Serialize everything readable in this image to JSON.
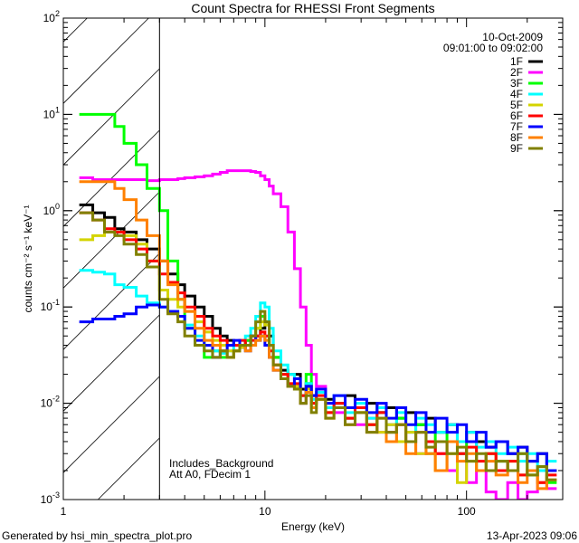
{
  "chart_data": {
    "type": "line",
    "title": "Count Spectra for RHESSI Front Segments",
    "xlabel": "Energy (keV)",
    "ylabel": "counts cm⁻² s⁻¹ keV⁻¹",
    "xscale": "log",
    "yscale": "log",
    "xlim": [
      1,
      300
    ],
    "ylim": [
      0.001,
      100
    ],
    "xtick_labels": [
      {
        "value": 1,
        "label": "1"
      },
      {
        "value": 10,
        "label": "10"
      },
      {
        "value": 100,
        "label": "100"
      }
    ],
    "ytick_labels": [
      {
        "value": 100,
        "base": "10",
        "exp": "2"
      },
      {
        "value": 10,
        "base": "10",
        "exp": "1"
      },
      {
        "value": 1,
        "base": "10",
        "exp": "0"
      },
      {
        "value": 0.1,
        "base": "10",
        "exp": "-1"
      },
      {
        "value": 0.01,
        "base": "10",
        "exp": "-2"
      },
      {
        "value": 0.001,
        "base": "10",
        "exp": "-3"
      }
    ],
    "date": "10-Oct-2009",
    "time_range": "09:01:00 to 09:02:00",
    "legend_position": "top-right",
    "shaded_region_keV": [
      1,
      3
    ],
    "annotations": [
      "Includes_Background",
      "Att A0, FDecim 1"
    ],
    "energies": [
      1.2,
      1.4,
      1.6,
      1.8,
      2.0,
      2.3,
      2.6,
      3.0,
      3.3,
      3.7,
      4.0,
      4.5,
      5,
      5.5,
      6,
      6.5,
      7,
      7.5,
      8,
      8.5,
      9,
      9.5,
      10,
      10.5,
      11,
      12,
      13,
      14,
      15,
      16,
      17,
      18,
      20,
      22,
      25,
      28,
      32,
      36,
      40,
      45,
      50,
      56,
      63,
      70,
      80,
      90,
      100,
      112,
      125,
      140,
      160,
      180,
      200,
      225,
      250
    ],
    "series": [
      {
        "name": "1F",
        "color": "#000000",
        "values": [
          1.15,
          0.95,
          0.85,
          0.65,
          0.6,
          0.5,
          0.4,
          0.3,
          0.22,
          0.17,
          0.13,
          0.1,
          0.08,
          0.06,
          0.05,
          0.045,
          0.04,
          0.038,
          0.045,
          0.05,
          0.05,
          0.06,
          0.07,
          0.05,
          0.03,
          0.022,
          0.02,
          0.02,
          0.014,
          0.016,
          0.012,
          0.013,
          0.011,
          0.01,
          0.012,
          0.009,
          0.01,
          0.008,
          0.009,
          0.007,
          0.008,
          0.006,
          0.007,
          0.005,
          0.006,
          0.004,
          0.005,
          0.004,
          0.0035,
          0.004,
          0.003,
          0.0035,
          0.0025,
          0.003,
          0.002
        ]
      },
      {
        "name": "2F",
        "color": "#ff00ff",
        "values": [
          2.2,
          2.1,
          2.1,
          2.1,
          2.1,
          2.1,
          2.05,
          2.1,
          2.1,
          2.15,
          2.2,
          2.25,
          2.3,
          2.4,
          2.5,
          2.6,
          2.6,
          2.6,
          2.6,
          2.55,
          2.5,
          2.3,
          2.1,
          1.8,
          1.5,
          1.1,
          0.6,
          0.25,
          0.1,
          0.04,
          0.02,
          0.015,
          0.01,
          0.008,
          0.007,
          0.006,
          0.007,
          0.005,
          0.006,
          0.004,
          0.005,
          0.003,
          0.004,
          0.003,
          0.002,
          0.003,
          0.0015,
          0.002,
          0.0012,
          0.0009,
          0.0015,
          0.001,
          0.0012,
          0.0015,
          0.0013
        ]
      },
      {
        "name": "3F",
        "color": "#00ff00",
        "values": [
          10,
          10,
          10,
          7.5,
          5,
          3,
          1.7,
          1.0,
          0.3,
          0.12,
          0.06,
          0.04,
          0.03,
          0.035,
          0.03,
          0.03,
          0.035,
          0.04,
          0.045,
          0.05,
          0.06,
          0.08,
          0.07,
          0.04,
          0.03,
          0.02,
          0.015,
          0.015,
          0.012,
          0.02,
          0.01,
          0.013,
          0.008,
          0.01,
          0.007,
          0.009,
          0.006,
          0.008,
          0.005,
          0.007,
          0.004,
          0.006,
          0.003,
          0.005,
          0.004,
          0.003,
          0.004,
          0.002,
          0.003,
          0.0025,
          0.002,
          0.003,
          0.0018,
          0.0022,
          0.0015
        ]
      },
      {
        "name": "4F",
        "color": "#00ffff",
        "values": [
          0.24,
          0.23,
          0.22,
          0.17,
          0.16,
          0.13,
          0.11,
          0.1,
          0.09,
          0.08,
          0.065,
          0.05,
          0.04,
          0.035,
          0.033,
          0.035,
          0.04,
          0.045,
          0.05,
          0.06,
          0.08,
          0.11,
          0.1,
          0.06,
          0.035,
          0.025,
          0.02,
          0.018,
          0.012,
          0.016,
          0.011,
          0.013,
          0.009,
          0.012,
          0.008,
          0.01,
          0.007,
          0.009,
          0.006,
          0.008,
          0.005,
          0.007,
          0.006,
          0.005,
          0.006,
          0.004,
          0.005,
          0.0035,
          0.004,
          0.003,
          0.0035,
          0.0025,
          0.003,
          0.002,
          0.0025
        ]
      },
      {
        "name": "5F",
        "color": "#d4d400",
        "values": [
          0.5,
          0.55,
          0.6,
          0.6,
          0.55,
          0.45,
          0.3,
          0.15,
          0.12,
          0.1,
          0.09,
          0.07,
          0.055,
          0.045,
          0.04,
          0.035,
          0.035,
          0.038,
          0.04,
          0.05,
          0.06,
          0.07,
          0.065,
          0.04,
          0.025,
          0.02,
          0.016,
          0.015,
          0.012,
          0.014,
          0.01,
          0.011,
          0.008,
          0.009,
          0.007,
          0.008,
          0.006,
          0.005,
          0.006,
          0.004,
          0.005,
          0.003,
          0.004,
          0.002,
          0.003,
          0.0015,
          0.0025,
          0.002,
          0.003,
          0.002,
          0.0025,
          0.0018,
          0.002,
          0.0015,
          0.002
        ]
      },
      {
        "name": "6F",
        "color": "#ff0000",
        "values": [
          0.95,
          0.8,
          0.65,
          0.6,
          0.5,
          0.4,
          0.3,
          0.22,
          0.18,
          0.14,
          0.1,
          0.08,
          0.06,
          0.05,
          0.045,
          0.04,
          0.04,
          0.045,
          0.04,
          0.045,
          0.05,
          0.055,
          0.05,
          0.035,
          0.025,
          0.02,
          0.016,
          0.016,
          0.012,
          0.015,
          0.01,
          0.012,
          0.008,
          0.01,
          0.007,
          0.009,
          0.006,
          0.008,
          0.005,
          0.006,
          0.004,
          0.005,
          0.004,
          0.003,
          0.004,
          0.003,
          0.0035,
          0.0025,
          0.003,
          0.002,
          0.0025,
          0.0018,
          0.002,
          0.0015,
          0.0018
        ]
      },
      {
        "name": "7F",
        "color": "#0000ff",
        "values": [
          0.07,
          0.075,
          0.075,
          0.08,
          0.085,
          0.1,
          0.105,
          0.1,
          0.09,
          0.08,
          0.06,
          0.045,
          0.04,
          0.03,
          0.035,
          0.04,
          0.045,
          0.04,
          0.035,
          0.05,
          0.045,
          0.05,
          0.04,
          0.03,
          0.022,
          0.018,
          0.015,
          0.018,
          0.01,
          0.015,
          0.012,
          0.014,
          0.01,
          0.012,
          0.009,
          0.011,
          0.008,
          0.01,
          0.007,
          0.009,
          0.006,
          0.008,
          0.005,
          0.007,
          0.005,
          0.006,
          0.004,
          0.005,
          0.0035,
          0.004,
          0.003,
          0.0035,
          0.0025,
          0.003,
          0.002
        ]
      },
      {
        "name": "8F",
        "color": "#ff8000",
        "values": [
          2.0,
          2.0,
          2.0,
          1.7,
          1.3,
          0.8,
          0.55,
          0.3,
          0.17,
          0.12,
          0.09,
          0.06,
          0.045,
          0.04,
          0.035,
          0.03,
          0.035,
          0.04,
          0.035,
          0.04,
          0.045,
          0.05,
          0.045,
          0.03,
          0.022,
          0.018,
          0.015,
          0.014,
          0.01,
          0.013,
          0.009,
          0.011,
          0.007,
          0.009,
          0.006,
          0.008,
          0.005,
          0.007,
          0.004,
          0.006,
          0.003,
          0.005,
          0.003,
          0.002,
          0.004,
          0.0025,
          0.003,
          0.002,
          0.0025,
          0.0018,
          0.002,
          0.0015,
          0.002,
          0.0013,
          0.0016
        ]
      },
      {
        "name": "9F",
        "color": "#808000",
        "values": [
          0.95,
          0.8,
          0.6,
          0.55,
          0.45,
          0.35,
          0.26,
          0.12,
          0.085,
          0.07,
          0.05,
          0.04,
          0.035,
          0.03,
          0.035,
          0.03,
          0.035,
          0.04,
          0.04,
          0.05,
          0.07,
          0.09,
          0.07,
          0.04,
          0.025,
          0.018,
          0.015,
          0.014,
          0.01,
          0.012,
          0.008,
          0.011,
          0.007,
          0.009,
          0.006,
          0.008,
          0.005,
          0.007,
          0.005,
          0.006,
          0.004,
          0.005,
          0.0035,
          0.004,
          0.003,
          0.0035,
          0.0025,
          0.003,
          0.002,
          0.0025,
          0.002,
          0.003,
          0.0018,
          0.0022,
          0.0016
        ]
      }
    ]
  },
  "footer": {
    "generated_by": "Generated by hsi_min_spectra_plot.pro",
    "timestamp": "13-Apr-2023 09:06"
  }
}
